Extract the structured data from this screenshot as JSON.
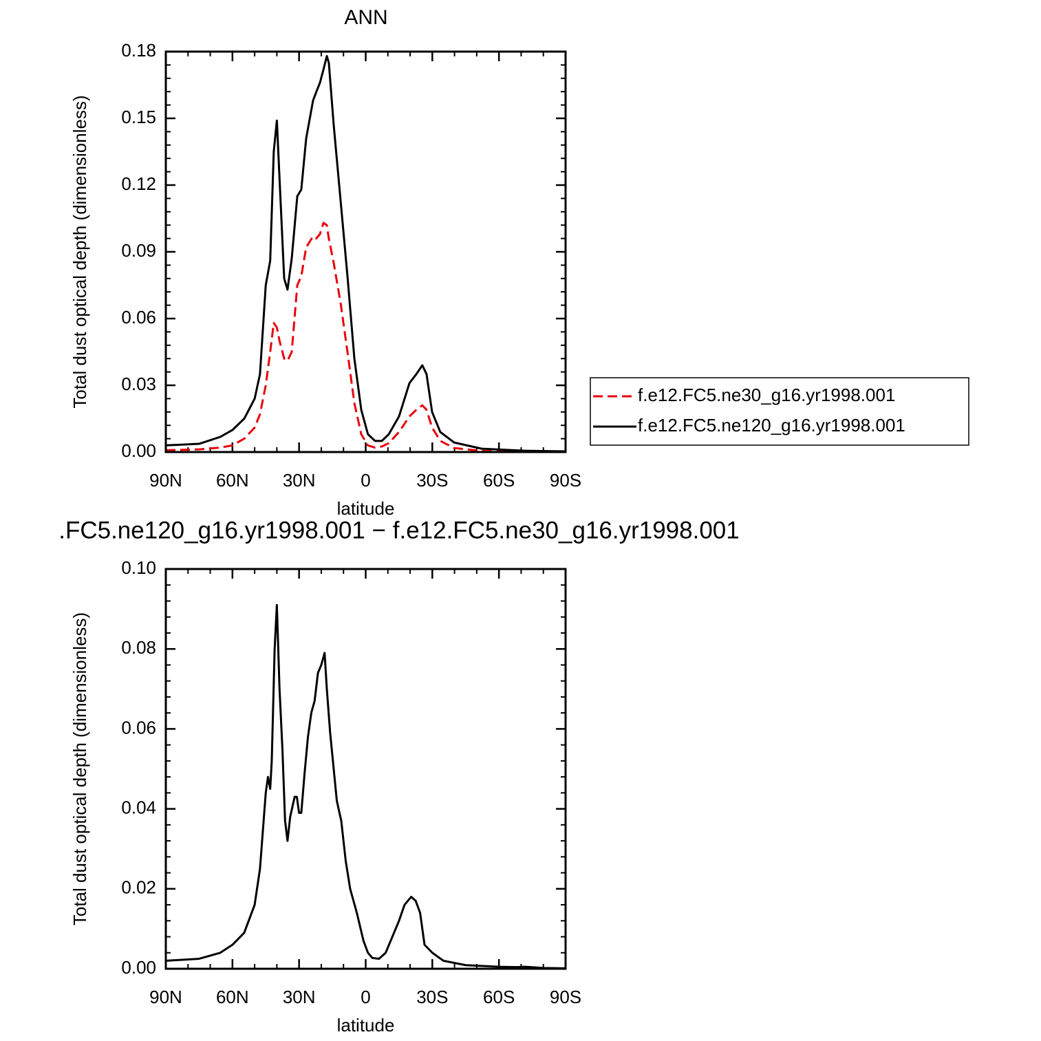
{
  "chart_data": [
    {
      "type": "line",
      "title": "ANN",
      "x_label": "latitude",
      "y_label": "Total dust optical depth (dimensionless)",
      "x": [
        90,
        75,
        65.5,
        60,
        54.7,
        50,
        47.6,
        45,
        43,
        41.4,
        40,
        38.8,
        36.7,
        35.2,
        33.3,
        30.8,
        29,
        26.8,
        23.7,
        22.2,
        20.6,
        19,
        17.5,
        16.6,
        14.4,
        11.3,
        8.2,
        5.1,
        2,
        -1,
        -4.2,
        -7.3,
        -10.4,
        -15,
        -19.7,
        -22.8,
        -25.5,
        -27.4,
        -29.9,
        -33.6,
        -39.8,
        -52.2,
        -70.8,
        -90
      ],
      "series": [
        {
          "name": "f.e12.FC5.ne30_g16.yr1998.001",
          "color": "#e8000b",
          "line_style": "dashed",
          "values": [
            0.0008,
            0.0012,
            0.002,
            0.003,
            0.006,
            0.011,
            0.017,
            0.03,
            0.045,
            0.058,
            0.056,
            0.05,
            0.042,
            0.041,
            0.045,
            0.075,
            0.079,
            0.092,
            0.097,
            0.096,
            0.098,
            0.103,
            0.102,
            0.096,
            0.085,
            0.067,
            0.045,
            0.022,
            0.008,
            0.003,
            0.002,
            0.0025,
            0.004,
            0.009,
            0.016,
            0.019,
            0.021,
            0.019,
            0.011,
            0.005,
            0.0018,
            0.0005,
            0.0002,
            0.0001
          ]
        },
        {
          "name": "f.e12.FC5.ne120_g16.yr1998.001",
          "color": "#000000",
          "line_style": "solid",
          "values": [
            0.003,
            0.0037,
            0.0068,
            0.0099,
            0.015,
            0.024,
            0.035,
            0.075,
            0.086,
            0.135,
            0.149,
            0.123,
            0.078,
            0.073,
            0.087,
            0.115,
            0.118,
            0.141,
            0.158,
            0.162,
            0.166,
            0.172,
            0.178,
            0.175,
            0.147,
            0.113,
            0.079,
            0.042,
            0.019,
            0.008,
            0.005,
            0.005,
            0.008,
            0.016,
            0.031,
            0.035,
            0.039,
            0.035,
            0.018,
            0.009,
            0.0043,
            0.0015,
            0.0006,
            0.0003
          ]
        }
      ],
      "xlim": [
        90,
        -90
      ],
      "xticks": [
        {
          "value": 90,
          "label": "90N"
        },
        {
          "value": 60,
          "label": "60N"
        },
        {
          "value": 30,
          "label": "30N"
        },
        0,
        {
          "value": -30,
          "label": "30S"
        },
        {
          "value": -60,
          "label": "60S"
        },
        {
          "value": -90,
          "label": "90S"
        }
      ],
      "ylim": [
        0,
        0.18
      ],
      "yticks": [
        {
          "value": 0,
          "label": "0.00"
        },
        0.03,
        0.06,
        0.09,
        0.12,
        0.15,
        0.18
      ],
      "legend": "right"
    },
    {
      "type": "line",
      "title": ".FC5.ne120_g16.yr1998.001 − f.e12.FC5.ne30_g16.yr1998.001",
      "x_label": "latitude",
      "y_label": "Total dust optical depth (dimensionless)",
      "x": [
        90,
        75,
        65.5,
        60,
        54.7,
        50,
        47.6,
        45,
        44,
        43,
        42.3,
        41,
        40,
        38.8,
        37.5,
        36.3,
        35.2,
        34,
        32,
        31,
        30,
        29,
        27.5,
        26,
        24.5,
        23,
        21.5,
        20,
        18.5,
        17.5,
        16,
        13,
        11,
        9,
        7,
        4,
        1,
        -1,
        -3,
        -6,
        -9,
        -12,
        -15,
        -17.5,
        -20.5,
        -22.5,
        -24.5,
        -26.5,
        -30,
        -35,
        -45,
        -60,
        -68,
        -72,
        -80,
        -90
      ],
      "series": [
        {
          "color": "#000000",
          "line_style": "solid",
          "values": [
            0.002,
            0.0025,
            0.004,
            0.006,
            0.009,
            0.016,
            0.025,
            0.044,
            0.048,
            0.045,
            0.052,
            0.08,
            0.091,
            0.07,
            0.055,
            0.037,
            0.032,
            0.038,
            0.043,
            0.043,
            0.039,
            0.039,
            0.049,
            0.058,
            0.064,
            0.067,
            0.074,
            0.076,
            0.079,
            0.07,
            0.059,
            0.042,
            0.037,
            0.027,
            0.02,
            0.014,
            0.007,
            0.004,
            0.0027,
            0.0025,
            0.004,
            0.008,
            0.012,
            0.016,
            0.018,
            0.017,
            0.014,
            0.006,
            0.004,
            0.002,
            0.0009,
            0.0005,
            0.0004,
            0.0005,
            0.0002,
            0.0001
          ]
        }
      ],
      "xlim": [
        90,
        -90
      ],
      "xticks": [
        {
          "value": 90,
          "label": "90N"
        },
        {
          "value": 60,
          "label": "60N"
        },
        {
          "value": 30,
          "label": "30N"
        },
        0,
        {
          "value": -30,
          "label": "30S"
        },
        {
          "value": -60,
          "label": "60S"
        },
        {
          "value": -90,
          "label": "90S"
        }
      ],
      "ylim": [
        0,
        0.1
      ],
      "yticks": [
        {
          "value": 0,
          "label": "0.00"
        },
        0.02,
        0.04,
        0.06,
        0.08,
        {
          "value": 0.1,
          "label": "0.10"
        }
      ]
    }
  ]
}
